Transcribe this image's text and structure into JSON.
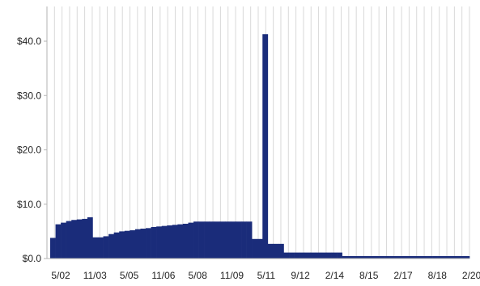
{
  "chart_data": {
    "type": "bar",
    "title": "",
    "xlabel": "",
    "ylabel": "",
    "ylim": [
      0,
      45
    ],
    "grid": "vertical-lines",
    "y_ticks": [
      {
        "value": 0,
        "label": "$0.0"
      },
      {
        "value": 10,
        "label": "$10.0"
      },
      {
        "value": 20,
        "label": "$20.0"
      },
      {
        "value": 30,
        "label": "$30.0"
      },
      {
        "value": 40,
        "label": "$40.0"
      }
    ],
    "x_tick_labels": [
      {
        "index": 2,
        "label": "5/02"
      },
      {
        "index": 5,
        "label": "11/03"
      },
      {
        "index": 8,
        "label": "5/05"
      },
      {
        "index": 11,
        "label": "11/06"
      },
      {
        "index": 14,
        "label": "5/08"
      },
      {
        "index": 17,
        "label": "11/09"
      },
      {
        "index": 20,
        "label": "5/11"
      },
      {
        "index": 23,
        "label": "9/12"
      },
      {
        "index": 26,
        "label": "2/14"
      },
      {
        "index": 29,
        "label": "8/15"
      },
      {
        "index": 32,
        "label": "2/17"
      },
      {
        "index": 35,
        "label": "8/18"
      },
      {
        "index": 38,
        "label": "2/20"
      }
    ],
    "values": [
      3.8,
      6.3,
      6.6,
      6.9,
      7.1,
      7.2,
      7.3,
      7.6,
      3.9,
      3.9,
      4.1,
      4.5,
      4.8,
      5.0,
      5.1,
      5.2,
      5.4,
      5.5,
      5.6,
      5.8,
      5.9,
      6.0,
      6.1,
      6.2,
      6.3,
      6.4,
      6.6,
      6.8,
      6.8,
      6.8,
      6.8,
      6.8,
      6.8,
      6.8,
      6.8,
      6.8,
      6.8,
      6.8,
      3.6,
      3.6,
      41.3,
      2.7,
      2.7,
      2.7,
      1.1,
      1.1,
      1.1,
      1.1,
      1.1,
      1.1,
      1.1,
      1.1,
      1.1,
      1.1,
      1.1,
      0.45,
      0.45,
      0.45,
      0.45,
      0.45,
      0.45,
      0.45,
      0.45,
      0.45,
      0.45,
      0.45,
      0.45,
      0.45,
      0.45,
      0.45,
      0.45,
      0.45,
      0.45,
      0.45,
      0.45,
      0.45,
      0.45,
      0.45,
      0.45
    ],
    "bar_color": "#1a2c7a",
    "grid_color": "#d9d9d9",
    "axis_color": "#b3b3b3"
  }
}
